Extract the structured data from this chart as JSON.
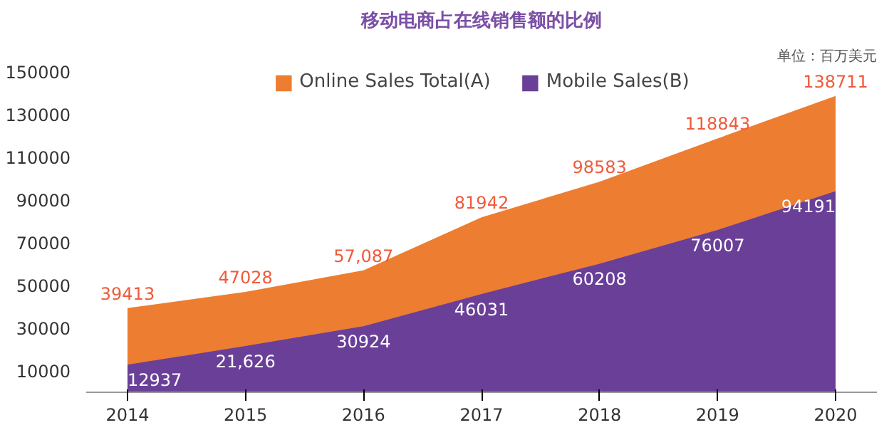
{
  "chart_data": {
    "type": "area",
    "title": "移动电商占在线销售额的比例",
    "annotations": [
      "单位：百万美元"
    ],
    "categories": [
      "2014",
      "2015",
      "2016",
      "2017",
      "2018",
      "2019",
      "2020"
    ],
    "series": [
      {
        "name": "Online Sales Total(A)",
        "color": "#ed7d31",
        "values": [
          39413,
          47028,
          57087,
          81942,
          98583,
          118843,
          138711
        ],
        "value_labels": [
          "39413",
          "47028",
          "57,087",
          "81942",
          "98583",
          "118843",
          "138711"
        ]
      },
      {
        "name": "Mobile Sales(B)",
        "color": "#6a3f98",
        "values": [
          12937,
          21626,
          30924,
          46031,
          60208,
          76007,
          94191
        ],
        "value_labels": [
          "12937",
          "21,626",
          "30924",
          "46031",
          "60208",
          "76007",
          "94191"
        ]
      }
    ],
    "ylim": [
      0,
      150000
    ],
    "yticks": [
      10000,
      30000,
      50000,
      70000,
      90000,
      110000,
      130000,
      150000
    ],
    "legend": "top",
    "grid": false
  }
}
